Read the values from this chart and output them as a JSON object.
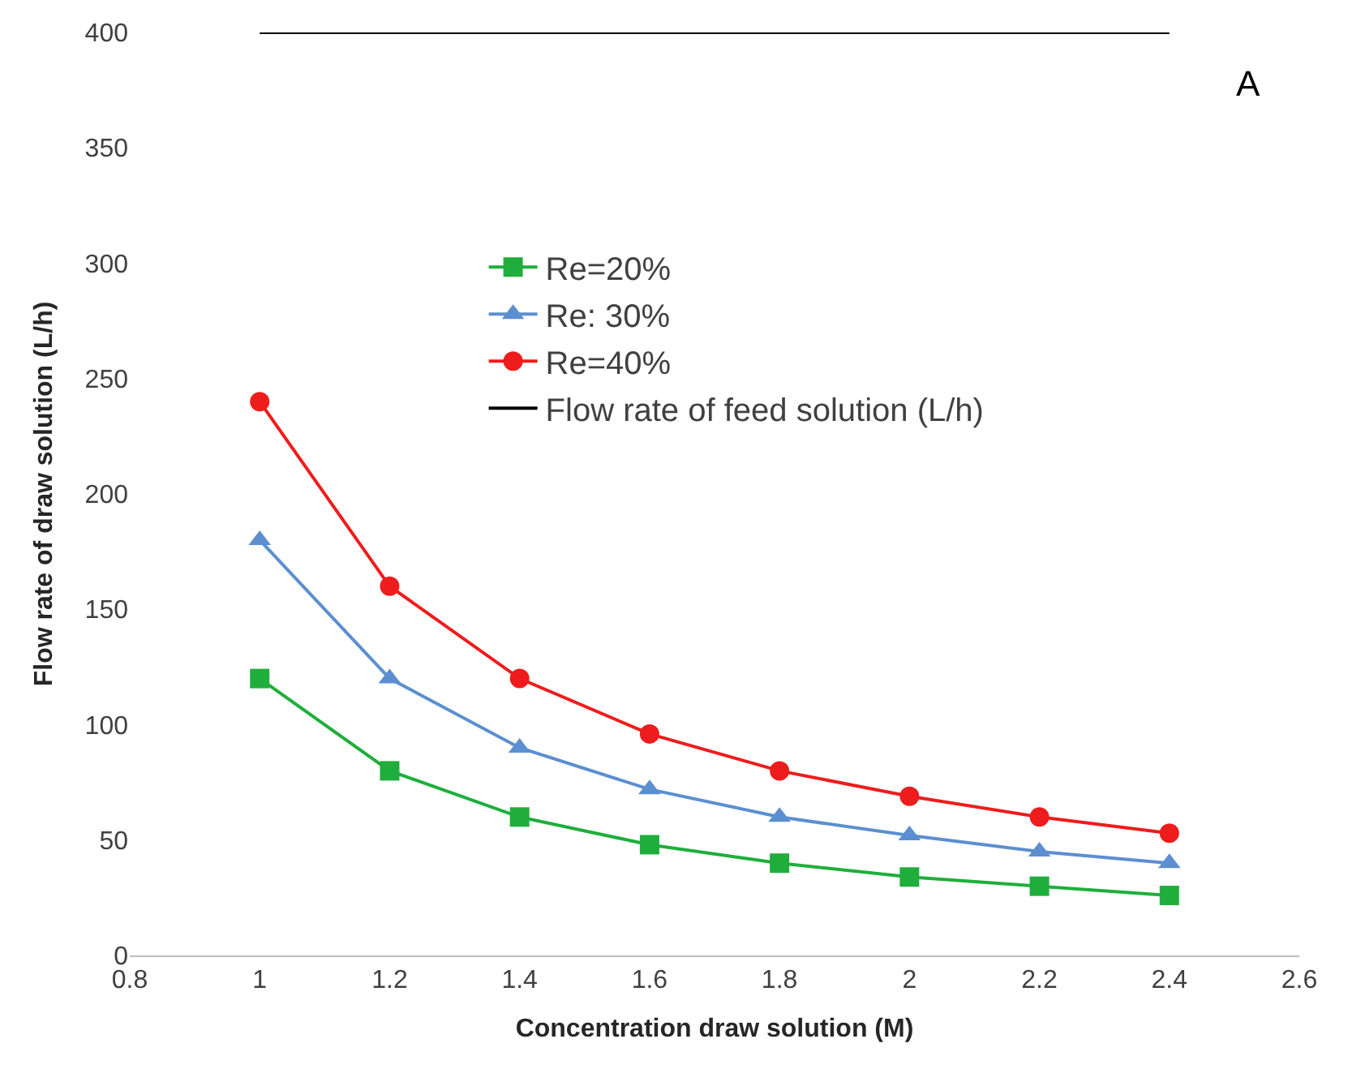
{
  "chart_data": {
    "type": "line",
    "xlabel": "Concentration draw solution (M)",
    "ylabel": "Flow rate of draw solution (L/h)",
    "x": [
      1,
      1.2,
      1.4,
      1.6,
      1.8,
      2,
      2.2,
      2.4
    ],
    "series": [
      {
        "name": "Re=20%",
        "color": "#1fae3c",
        "marker": "square",
        "values": [
          120,
          80,
          60,
          48,
          40,
          34,
          30,
          26
        ]
      },
      {
        "name": "Re: 30%",
        "color": "#5b8fd0",
        "marker": "triangle",
        "values": [
          180,
          120,
          90,
          72,
          60,
          52,
          45,
          40
        ]
      },
      {
        "name": "Re=40%",
        "color": "#ee1c1c",
        "marker": "circle",
        "values": [
          240,
          160,
          120,
          96,
          80,
          69,
          60,
          53
        ]
      },
      {
        "name": "Flow rate of feed solution (L/h)",
        "color": "#000000",
        "marker": "none",
        "values": [
          400,
          400,
          400,
          400,
          400,
          400,
          400,
          400
        ]
      }
    ],
    "xlim": [
      0.8,
      2.6
    ],
    "xticks": [
      0.8,
      1,
      1.2,
      1.4,
      1.6,
      1.8,
      2,
      2.2,
      2.4,
      2.6
    ],
    "ylim": [
      0,
      400
    ],
    "yticks": [
      0,
      50,
      100,
      150,
      200,
      250,
      300,
      350,
      400
    ],
    "legend": "top",
    "annotations": [
      "A"
    ]
  }
}
